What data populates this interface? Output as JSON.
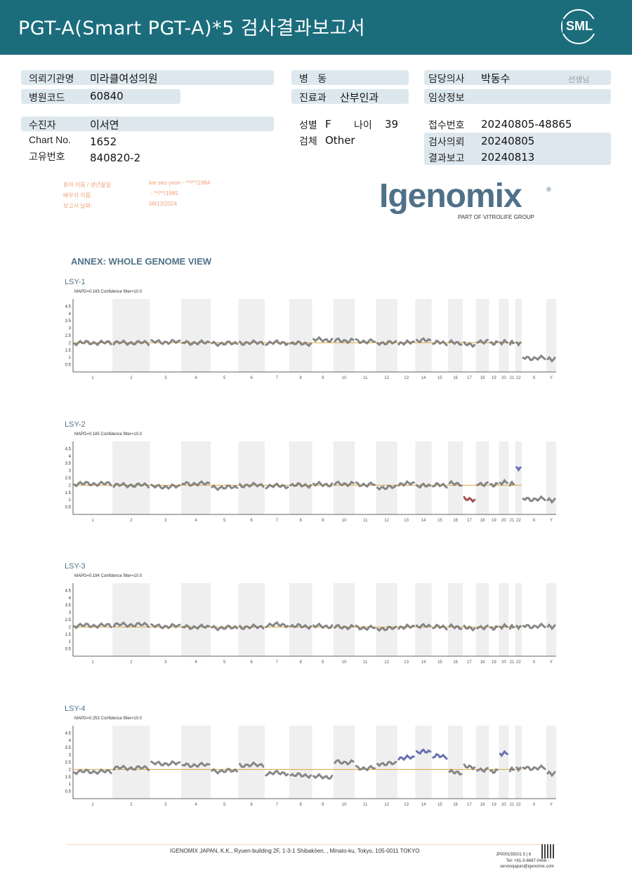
{
  "header": {
    "title": "PGT-A(Smart  PGT-A)*5 검사결과보고서",
    "logo": "SML"
  },
  "info": {
    "requesting_institution": {
      "label": "의뢰기관명",
      "value": "미라클여성의원"
    },
    "hospital_code": {
      "label": "병원코드",
      "value": "60840"
    },
    "ward": {
      "label": "병   동",
      "value": ""
    },
    "department": {
      "label": "진료과",
      "value": "산부인과"
    },
    "doctor": {
      "label": "담당의사",
      "value": "박동수",
      "suffix": "선생님"
    },
    "clinical_info": {
      "label": "임상정보",
      "value": ""
    },
    "patient": {
      "label": "수진자",
      "value": "이서연"
    },
    "chart_no": {
      "label": "Chart No.",
      "value": "1652"
    },
    "unique_no": {
      "label": "고유번호",
      "value": "840820-2"
    },
    "sex": {
      "label": "성별",
      "value": "F"
    },
    "age": {
      "label": "나이",
      "value": "39"
    },
    "specimen": {
      "label": "검체",
      "value": "Other"
    },
    "receipt_no": {
      "label": "접수번호",
      "value": "20240805-48865"
    },
    "test_request": {
      "label": "검사의뢰",
      "value": "20240805"
    },
    "result_report": {
      "label": "결과보고",
      "value": "20240813"
    }
  },
  "patient_box": {
    "rows": [
      {
        "label": "환자 이름 / 생년월일",
        "value": "lee seo yeon - **/**/1984"
      },
      {
        "label": "배우자 이름:",
        "value": " - **/**/1985"
      },
      {
        "label": "보고서 날짜:",
        "value": "08/13/2024"
      }
    ]
  },
  "lab_logo": {
    "name": "Igenomix",
    "registered": "®",
    "tagline": "PART OF VITROLIFE GROUP"
  },
  "annex_title": "ANNEX: WHOLE GENOME VIEW",
  "panels": [
    {
      "name": "LSY-1",
      "stats": "MAPD=0.183 Confidence filter=10.0"
    },
    {
      "name": "LSY-2",
      "stats": "MAPD=0.185 Confidence filter=10.0"
    },
    {
      "name": "LSY-3",
      "stats": "MAPD=0.194 Confidence filter=10.0"
    },
    {
      "name": "LSY-4",
      "stats": "MAPD=0.253 Confidence filter=10.0"
    }
  ],
  "chart_data": [
    {
      "type": "scatter",
      "title": "LSY-1",
      "y_ticks": [
        "4.5",
        "4",
        "3.5",
        "3",
        "2.5",
        "2",
        "1.5",
        "1",
        "0.5"
      ],
      "ylim": [
        0,
        5
      ],
      "categories": [
        "1",
        "2",
        "3",
        "4",
        "5",
        "6",
        "7",
        "8",
        "9",
        "10",
        "11",
        "12",
        "13",
        "14",
        "15",
        "16",
        "17",
        "18",
        "19",
        "20",
        "21",
        "22",
        "X",
        "Y"
      ],
      "reference_line": 2,
      "segments": [
        {
          "chrom": "1",
          "value": 2.0
        },
        {
          "chrom": "2",
          "value": 2.0
        },
        {
          "chrom": "3",
          "value": 2.05
        },
        {
          "chrom": "4",
          "value": 2.0
        },
        {
          "chrom": "5",
          "value": 1.95
        },
        {
          "chrom": "6",
          "value": 2.0
        },
        {
          "chrom": "7",
          "value": 2.0
        },
        {
          "chrom": "8",
          "value": 1.95
        },
        {
          "chrom": "9",
          "value": 2.2
        },
        {
          "chrom": "10",
          "value": 2.15
        },
        {
          "chrom": "11",
          "value": 2.1
        },
        {
          "chrom": "12",
          "value": 2.0
        },
        {
          "chrom": "13",
          "value": 2.0
        },
        {
          "chrom": "14",
          "value": 2.15
        },
        {
          "chrom": "15",
          "value": 2.0
        },
        {
          "chrom": "16",
          "value": 2.0
        },
        {
          "chrom": "17",
          "value": 1.9
        },
        {
          "chrom": "18",
          "value": 2.1
        },
        {
          "chrom": "19",
          "value": 2.0
        },
        {
          "chrom": "20",
          "value": 2.05
        },
        {
          "chrom": "21",
          "value": 2.0
        },
        {
          "chrom": "22",
          "value": 1.9
        },
        {
          "chrom": "X",
          "value": 0.95
        },
        {
          "chrom": "Y",
          "value": 0.9
        }
      ]
    },
    {
      "type": "scatter",
      "title": "LSY-2",
      "y_ticks": [
        "4.5",
        "4",
        "3.5",
        "3",
        "2.5",
        "2",
        "1.5",
        "1",
        "0.5"
      ],
      "ylim": [
        0,
        5
      ],
      "categories": [
        "1",
        "2",
        "3",
        "4",
        "5",
        "6",
        "7",
        "8",
        "9",
        "10",
        "11",
        "12",
        "13",
        "14",
        "15",
        "16",
        "17",
        "18",
        "19",
        "20",
        "21",
        "22",
        "X",
        "Y"
      ],
      "reference_line": 2,
      "segments": [
        {
          "chrom": "1",
          "value": 2.1
        },
        {
          "chrom": "2",
          "value": 2.0
        },
        {
          "chrom": "3",
          "value": 1.9
        },
        {
          "chrom": "4",
          "value": 2.1
        },
        {
          "chrom": "5",
          "value": 1.85
        },
        {
          "chrom": "6",
          "value": 2.0
        },
        {
          "chrom": "7",
          "value": 1.95
        },
        {
          "chrom": "8",
          "value": 2.0
        },
        {
          "chrom": "9",
          "value": 2.05
        },
        {
          "chrom": "10",
          "value": 2.1
        },
        {
          "chrom": "11",
          "value": 2.05
        },
        {
          "chrom": "12",
          "value": 1.85
        },
        {
          "chrom": "13",
          "value": 2.1
        },
        {
          "chrom": "14",
          "value": 1.95
        },
        {
          "chrom": "15",
          "value": 2.0
        },
        {
          "chrom": "16",
          "value": 2.1
        },
        {
          "chrom": "17",
          "value": 1.05
        },
        {
          "chrom": "18",
          "value": 2.1
        },
        {
          "chrom": "19",
          "value": 2.05
        },
        {
          "chrom": "20",
          "value": 2.2
        },
        {
          "chrom": "21",
          "value": 2.1
        },
        {
          "chrom": "22",
          "value": 3.1
        },
        {
          "chrom": "X",
          "value": 1.05
        },
        {
          "chrom": "Y",
          "value": 1.0
        }
      ]
    },
    {
      "type": "scatter",
      "title": "LSY-3",
      "y_ticks": [
        "4.5",
        "4",
        "3.5",
        "3",
        "2.5",
        "2",
        "1.5",
        "1",
        "0.5"
      ],
      "ylim": [
        0,
        5
      ],
      "categories": [
        "1",
        "2",
        "3",
        "4",
        "5",
        "6",
        "7",
        "8",
        "9",
        "10",
        "11",
        "12",
        "13",
        "14",
        "15",
        "16",
        "17",
        "18",
        "19",
        "20",
        "21",
        "22",
        "X",
        "Y"
      ],
      "reference_line": 2,
      "segments": [
        {
          "chrom": "1",
          "value": 2.1
        },
        {
          "chrom": "2",
          "value": 2.15
        },
        {
          "chrom": "3",
          "value": 2.05
        },
        {
          "chrom": "4",
          "value": 2.0
        },
        {
          "chrom": "5",
          "value": 1.95
        },
        {
          "chrom": "6",
          "value": 2.0
        },
        {
          "chrom": "7",
          "value": 2.15
        },
        {
          "chrom": "8",
          "value": 2.05
        },
        {
          "chrom": "9",
          "value": 2.05
        },
        {
          "chrom": "10",
          "value": 2.0
        },
        {
          "chrom": "11",
          "value": 1.95
        },
        {
          "chrom": "12",
          "value": 1.9
        },
        {
          "chrom": "13",
          "value": 2.0
        },
        {
          "chrom": "14",
          "value": 2.05
        },
        {
          "chrom": "15",
          "value": 2.0
        },
        {
          "chrom": "16",
          "value": 2.0
        },
        {
          "chrom": "17",
          "value": 1.95
        },
        {
          "chrom": "18",
          "value": 2.0
        },
        {
          "chrom": "19",
          "value": 1.95
        },
        {
          "chrom": "20",
          "value": 2.05
        },
        {
          "chrom": "21",
          "value": 2.0
        },
        {
          "chrom": "22",
          "value": 1.95
        },
        {
          "chrom": "X",
          "value": 2.05
        },
        {
          "chrom": "Y",
          "value": 2.05
        }
      ]
    },
    {
      "type": "scatter",
      "title": "LSY-4",
      "y_ticks": [
        "4.5",
        "4",
        "3.5",
        "3",
        "2.5",
        "2",
        "1.5",
        "1",
        "0.5"
      ],
      "ylim": [
        0,
        5
      ],
      "categories": [
        "1",
        "2",
        "3",
        "4",
        "5",
        "6",
        "7",
        "8",
        "9",
        "10",
        "11",
        "12",
        "13",
        "14",
        "15",
        "16",
        "17",
        "18",
        "19",
        "20",
        "21",
        "22",
        "X",
        "Y"
      ],
      "reference_line": 2,
      "segments": [
        {
          "chrom": "1",
          "value": 1.85
        },
        {
          "chrom": "2",
          "value": 2.1
        },
        {
          "chrom": "3",
          "value": 2.4
        },
        {
          "chrom": "4",
          "value": 2.3
        },
        {
          "chrom": "5",
          "value": 1.9
        },
        {
          "chrom": "6",
          "value": 2.3
        },
        {
          "chrom": "7",
          "value": 1.75
        },
        {
          "chrom": "8",
          "value": 1.6
        },
        {
          "chrom": "9",
          "value": 1.5
        },
        {
          "chrom": "10",
          "value": 2.5
        },
        {
          "chrom": "11",
          "value": 2.1
        },
        {
          "chrom": "12",
          "value": 2.4
        },
        {
          "chrom": "13",
          "value": 2.8
        },
        {
          "chrom": "14",
          "value": 3.2
        },
        {
          "chrom": "15",
          "value": 2.9
        },
        {
          "chrom": "16",
          "value": 1.8
        },
        {
          "chrom": "17",
          "value": 2.2
        },
        {
          "chrom": "18",
          "value": 2.0
        },
        {
          "chrom": "19",
          "value": 1.9
        },
        {
          "chrom": "20",
          "value": 3.1
        },
        {
          "chrom": "21",
          "value": 2.0
        },
        {
          "chrom": "22",
          "value": 2.0
        },
        {
          "chrom": "X",
          "value": 2.1
        },
        {
          "chrom": "Y",
          "value": 1.75
        }
      ]
    }
  ],
  "footer": {
    "address": "IGENOMIX JAPAN, K.K., Ryuen-building 2F, 1-3-1 Shibakōen, , Minato-ku, Tokyo, 105-0011 TOKYO",
    "doc_id": "JP000159201   5 | 6",
    "phone": "Tel: +81-3-6667-0456 -",
    "email": "servicejapan@igenomix.com"
  }
}
